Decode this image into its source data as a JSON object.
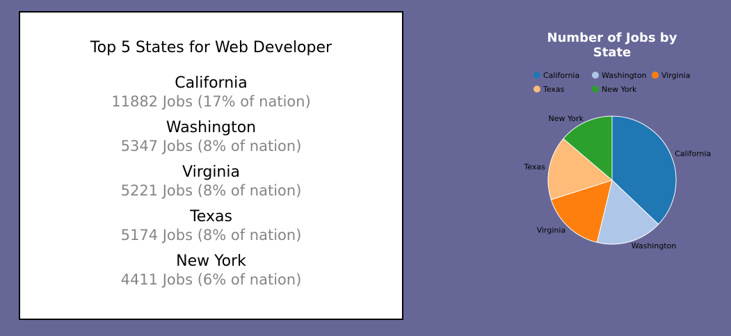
{
  "panel": {
    "title": "Top 5 States for Web Developer",
    "states": [
      {
        "name": "California",
        "jobs_text": "11882 Jobs (17% of nation)"
      },
      {
        "name": "Washington",
        "jobs_text": "5347 Jobs (8% of nation)"
      },
      {
        "name": "Virginia",
        "jobs_text": "5221 Jobs (8% of nation)"
      },
      {
        "name": "Texas",
        "jobs_text": "5174 Jobs (8% of nation)"
      },
      {
        "name": "New York",
        "jobs_text": "4411 Jobs (6% of nation)"
      }
    ]
  },
  "chart_data": {
    "type": "pie",
    "title": "Number of Jobs by State",
    "categories": [
      "California",
      "Washington",
      "Virginia",
      "Texas",
      "New York"
    ],
    "values": [
      11882,
      5347,
      5221,
      5174,
      4411
    ],
    "colors": [
      "#1f77b4",
      "#aec7e8",
      "#ff7f0e",
      "#ffbb78",
      "#2ca02c"
    ],
    "legend_placement": "top"
  }
}
